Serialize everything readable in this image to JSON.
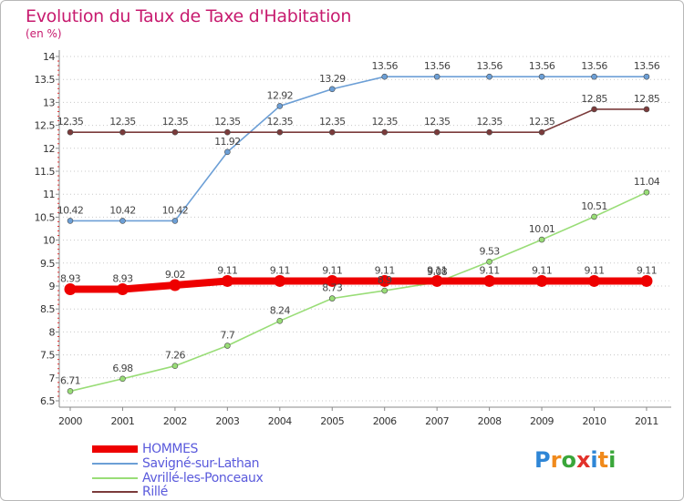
{
  "title": "Evolution du Taux de Taxe d'Habitation",
  "subtitle": "(en %)",
  "logo": {
    "text": "Proxiti",
    "letters": [
      "P",
      "r",
      "o",
      "x",
      "i",
      "t",
      "i"
    ],
    "colors": [
      "#2f86d6",
      "#f08a1c",
      "#3aa63a",
      "#e2312a",
      "#2f86d6",
      "#f08a1c",
      "#3aa63a"
    ]
  },
  "chart_data": {
    "type": "line",
    "title": "Evolution du Taux de Taxe d'Habitation",
    "subtitle": "(en %)",
    "xlabel": "",
    "ylabel": "",
    "x": [
      "2000",
      "2001",
      "2002",
      "2003",
      "2004",
      "2005",
      "2006",
      "2007",
      "2008",
      "2009",
      "2010",
      "2011"
    ],
    "ylim": [
      6.5,
      14
    ],
    "yticks": [
      "6.5",
      "7",
      "7.5",
      "8",
      "8.5",
      "9",
      "9.5",
      "10",
      "10.5",
      "11",
      "11.5",
      "12",
      "12.5",
      "13",
      "13.5",
      "14"
    ],
    "grid": "horizontal dotted",
    "legend_position": "bottom-left",
    "series": [
      {
        "name": "HOMMES",
        "color": "#ee0000",
        "values": [
          8.93,
          8.93,
          9.02,
          9.11,
          9.11,
          9.11,
          9.11,
          9.11,
          9.11,
          9.11,
          9.11,
          9.11
        ],
        "labels": [
          "8.93",
          "8.93",
          "9.02",
          "9.11",
          "9.11",
          "9.11",
          "9.11",
          "9.11",
          "9.11",
          "9.11",
          "9.11",
          "9.11"
        ]
      },
      {
        "name": "Savigné-sur-Lathan",
        "color": "#6c9fd6",
        "values": [
          10.42,
          10.42,
          10.42,
          11.92,
          12.92,
          13.29,
          13.56,
          13.56,
          13.56,
          13.56,
          13.56,
          13.56
        ],
        "labels": [
          "10.42",
          "10.42",
          "10.42",
          "11.92",
          "12.92",
          "13.29",
          "13.56",
          "13.56",
          "13.56",
          "13.56",
          "13.56",
          "13.56"
        ]
      },
      {
        "name": "Avrillé-les-Ponceaux",
        "color": "#99dd77",
        "values": [
          6.71,
          6.98,
          7.26,
          7.7,
          8.24,
          8.73,
          8.9,
          9.08,
          9.53,
          10.01,
          10.51,
          11.04
        ],
        "labels": [
          "6.71",
          "6.98",
          "7.26",
          "7.7",
          "8.24",
          "8.73",
          "8.9",
          "9.08",
          "9.53",
          "10.01",
          "10.51",
          "11.04"
        ]
      },
      {
        "name": "Rillé",
        "color": "#7b3b3b",
        "values": [
          12.35,
          12.35,
          12.35,
          12.35,
          12.35,
          12.35,
          12.35,
          12.35,
          12.35,
          12.35,
          12.85,
          12.85
        ],
        "labels": [
          "12.35",
          "12.35",
          "12.35",
          "12.35",
          "12.35",
          "12.35",
          "12.35",
          "12.35",
          "12.35",
          "12.35",
          "12.85",
          "12.85"
        ]
      }
    ]
  }
}
